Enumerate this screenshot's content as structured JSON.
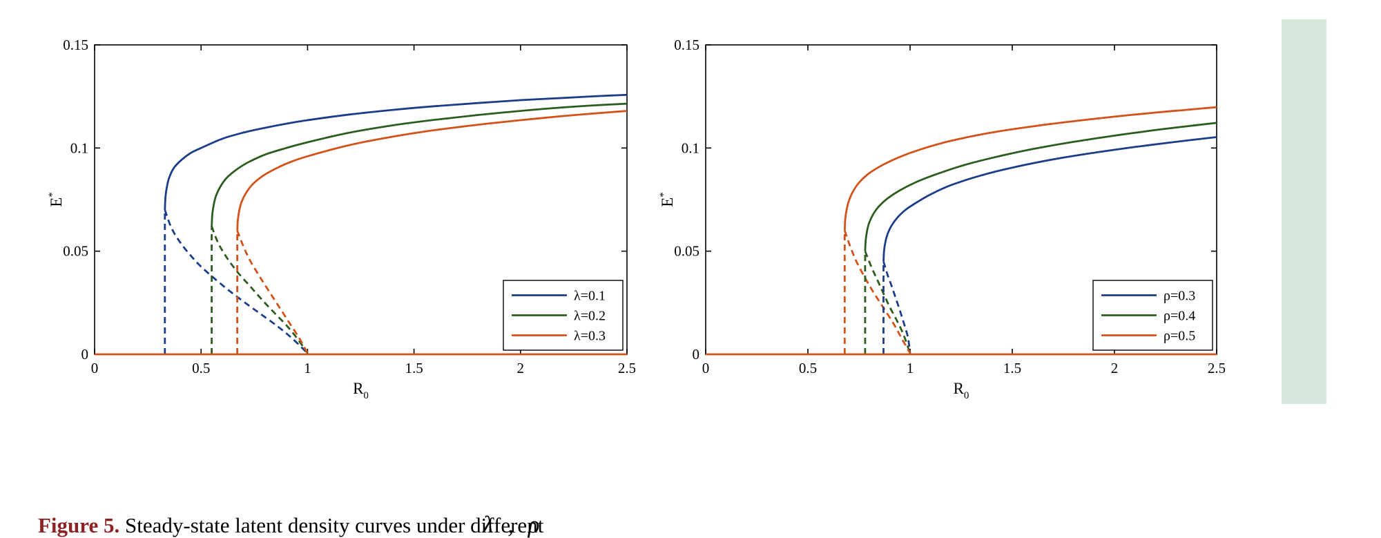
{
  "page": {
    "background": "#ffffff",
    "strip_color": "#d7e8dc"
  },
  "caption": {
    "label": "Figure 5.",
    "label_color": "#8e2222",
    "text": " Steady-state latent density curves under different",
    "math": "λ ,  ρ"
  },
  "chart_data": [
    {
      "type": "line",
      "title": "",
      "xlabel": {
        "main": "R",
        "sub": "0"
      },
      "ylabel": {
        "main": "E",
        "sup": "*"
      },
      "xlim": [
        0,
        2.5
      ],
      "ylim": [
        0,
        0.15
      ],
      "xticks": [
        0,
        0.5,
        1,
        1.5,
        2,
        2.5
      ],
      "xtick_labels": [
        "0",
        "0.5",
        "1",
        "1.5",
        "2",
        "2.5"
      ],
      "yticks": [
        0,
        0.05,
        0.1,
        0.15
      ],
      "ytick_labels": [
        "0",
        "0.05",
        "0.1",
        "0.15"
      ],
      "grid": false,
      "legend": {
        "position": "lower-right",
        "entries": [
          {
            "label": "λ=0.1",
            "color": "#1b3d8a"
          },
          {
            "label": "λ=0.2",
            "color": "#2d5d1e"
          },
          {
            "label": "λ=0.3",
            "color": "#d2521a"
          }
        ]
      },
      "series": [
        {
          "name": "lambda-0.1-stable",
          "color": "#1b3d8a",
          "style": "solid",
          "points": [
            [
              0.33,
              0.07
            ],
            [
              0.333,
              0.0765
            ],
            [
              0.34,
              0.0815
            ],
            [
              0.35,
              0.0855
            ],
            [
              0.37,
              0.09
            ],
            [
              0.4,
              0.0935
            ],
            [
              0.45,
              0.0975
            ],
            [
              0.5,
              0.1
            ],
            [
              0.6,
              0.1045
            ],
            [
              0.7,
              0.1075
            ],
            [
              0.8,
              0.1098
            ],
            [
              0.9,
              0.1118
            ],
            [
              1.0,
              0.1135
            ],
            [
              1.2,
              0.1163
            ],
            [
              1.4,
              0.1185
            ],
            [
              1.6,
              0.1203
            ],
            [
              1.8,
              0.1218
            ],
            [
              2.0,
              0.1232
            ],
            [
              2.2,
              0.1243
            ],
            [
              2.35,
              0.1251
            ],
            [
              2.5,
              0.1258
            ]
          ]
        },
        {
          "name": "lambda-0.2-stable",
          "color": "#2d5d1e",
          "style": "solid",
          "points": [
            [
              0.55,
              0.062
            ],
            [
              0.553,
              0.068
            ],
            [
              0.56,
              0.0728
            ],
            [
              0.57,
              0.0768
            ],
            [
              0.59,
              0.0812
            ],
            [
              0.62,
              0.0855
            ],
            [
              0.67,
              0.0898
            ],
            [
              0.72,
              0.093
            ],
            [
              0.8,
              0.0968
            ],
            [
              0.9,
              0.1
            ],
            [
              1.0,
              0.1028
            ],
            [
              1.2,
              0.1075
            ],
            [
              1.4,
              0.111
            ],
            [
              1.6,
              0.1137
            ],
            [
              1.8,
              0.116
            ],
            [
              2.0,
              0.118
            ],
            [
              2.2,
              0.1197
            ],
            [
              2.35,
              0.1207
            ],
            [
              2.5,
              0.1215
            ]
          ]
        },
        {
          "name": "lambda-0.3-stable",
          "color": "#d2521a",
          "style": "solid",
          "points": [
            [
              0.67,
              0.06
            ],
            [
              0.673,
              0.0655
            ],
            [
              0.68,
              0.07
            ],
            [
              0.69,
              0.0738
            ],
            [
              0.71,
              0.078
            ],
            [
              0.74,
              0.0822
            ],
            [
              0.79,
              0.0865
            ],
            [
              0.85,
              0.09
            ],
            [
              0.92,
              0.0932
            ],
            [
              1.0,
              0.096
            ],
            [
              1.2,
              0.1015
            ],
            [
              1.4,
              0.1055
            ],
            [
              1.6,
              0.1087
            ],
            [
              1.8,
              0.1113
            ],
            [
              2.0,
              0.1135
            ],
            [
              2.2,
              0.1155
            ],
            [
              2.35,
              0.1168
            ],
            [
              2.5,
              0.118
            ]
          ]
        },
        {
          "name": "lambda-0.1-unstable",
          "color": "#1b3d8a",
          "style": "dashed",
          "points": [
            [
              0.33,
              0.07
            ],
            [
              0.36,
              0.0615
            ],
            [
              0.4,
              0.0545
            ],
            [
              0.45,
              0.048
            ],
            [
              0.5,
              0.0425
            ],
            [
              0.56,
              0.037
            ],
            [
              0.63,
              0.031
            ],
            [
              0.7,
              0.0255
            ],
            [
              0.78,
              0.0195
            ],
            [
              0.86,
              0.0135
            ],
            [
              0.93,
              0.0075
            ],
            [
              1.0,
              0.0005
            ]
          ]
        },
        {
          "name": "lambda-0.2-unstable",
          "color": "#2d5d1e",
          "style": "dashed",
          "points": [
            [
              0.55,
              0.062
            ],
            [
              0.58,
              0.054
            ],
            [
              0.62,
              0.047
            ],
            [
              0.67,
              0.04
            ],
            [
              0.73,
              0.033
            ],
            [
              0.79,
              0.026
            ],
            [
              0.85,
              0.0195
            ],
            [
              0.91,
              0.013
            ],
            [
              0.96,
              0.0065
            ],
            [
              1.0,
              0.0005
            ]
          ]
        },
        {
          "name": "lambda-0.3-unstable",
          "color": "#d2521a",
          "style": "dashed",
          "points": [
            [
              0.67,
              0.06
            ],
            [
              0.7,
              0.052
            ],
            [
              0.73,
              0.0455
            ],
            [
              0.77,
              0.0385
            ],
            [
              0.81,
              0.032
            ],
            [
              0.86,
              0.024
            ],
            [
              0.91,
              0.016
            ],
            [
              0.96,
              0.008
            ],
            [
              1.0,
              0.0005
            ]
          ]
        },
        {
          "name": "lambda-0.1-fold-line",
          "color": "#1b3d8a",
          "style": "dashed",
          "points": [
            [
              0.33,
              0
            ],
            [
              0.33,
              0.07
            ]
          ]
        },
        {
          "name": "lambda-0.2-fold-line",
          "color": "#2d5d1e",
          "style": "dashed",
          "points": [
            [
              0.55,
              0
            ],
            [
              0.55,
              0.062
            ]
          ]
        },
        {
          "name": "lambda-0.3-fold-line",
          "color": "#d2521a",
          "style": "dashed",
          "points": [
            [
              0.67,
              0
            ],
            [
              0.67,
              0.06
            ]
          ]
        },
        {
          "name": "zero-equilibrium",
          "color": "#d2521a",
          "style": "solid",
          "points": [
            [
              0,
              0
            ],
            [
              2.5,
              0
            ]
          ]
        }
      ]
    },
    {
      "type": "line",
      "title": "",
      "xlabel": {
        "main": "R",
        "sub": "0"
      },
      "ylabel": {
        "main": "E",
        "sup": "*"
      },
      "xlim": [
        0,
        2.5
      ],
      "ylim": [
        0,
        0.15
      ],
      "xticks": [
        0,
        0.5,
        1,
        1.5,
        2,
        2.5
      ],
      "xtick_labels": [
        "0",
        "0.5",
        "1",
        "1.5",
        "2",
        "2.5"
      ],
      "yticks": [
        0,
        0.05,
        0.1,
        0.15
      ],
      "ytick_labels": [
        "0",
        "0.05",
        "0.1",
        "0.15"
      ],
      "grid": false,
      "legend": {
        "position": "lower-right",
        "entries": [
          {
            "label": "ρ=0.3",
            "color": "#1b3d8a"
          },
          {
            "label": "ρ=0.4",
            "color": "#2d5d1e"
          },
          {
            "label": "ρ=0.5",
            "color": "#d2521a"
          }
        ]
      },
      "series": [
        {
          "name": "rho-0.3-stable",
          "color": "#1b3d8a",
          "style": "solid",
          "points": [
            [
              0.87,
              0.045
            ],
            [
              0.873,
              0.0505
            ],
            [
              0.88,
              0.0548
            ],
            [
              0.89,
              0.0583
            ],
            [
              0.91,
              0.0625
            ],
            [
              0.94,
              0.0665
            ],
            [
              0.98,
              0.0702
            ],
            [
              1.03,
              0.0735
            ],
            [
              1.1,
              0.0775
            ],
            [
              1.2,
              0.082
            ],
            [
              1.35,
              0.0868
            ],
            [
              1.5,
              0.0905
            ],
            [
              1.7,
              0.0945
            ],
            [
              1.9,
              0.0977
            ],
            [
              2.1,
              0.1005
            ],
            [
              2.3,
              0.103
            ],
            [
              2.5,
              0.1053
            ]
          ]
        },
        {
          "name": "rho-0.4-stable",
          "color": "#2d5d1e",
          "style": "solid",
          "points": [
            [
              0.78,
              0.05
            ],
            [
              0.783,
              0.0555
            ],
            [
              0.79,
              0.06
            ],
            [
              0.8,
              0.0638
            ],
            [
              0.82,
              0.068
            ],
            [
              0.85,
              0.072
            ],
            [
              0.89,
              0.0756
            ],
            [
              0.95,
              0.0795
            ],
            [
              1.03,
              0.0835
            ],
            [
              1.12,
              0.087
            ],
            [
              1.25,
              0.0913
            ],
            [
              1.4,
              0.0952
            ],
            [
              1.6,
              0.0995
            ],
            [
              1.8,
              0.103
            ],
            [
              2.0,
              0.106
            ],
            [
              2.2,
              0.1087
            ],
            [
              2.35,
              0.1105
            ],
            [
              2.5,
              0.1122
            ]
          ]
        },
        {
          "name": "rho-0.5-stable",
          "color": "#d2521a",
          "style": "solid",
          "points": [
            [
              0.68,
              0.06
            ],
            [
              0.683,
              0.0657
            ],
            [
              0.69,
              0.0702
            ],
            [
              0.7,
              0.0742
            ],
            [
              0.72,
              0.0788
            ],
            [
              0.75,
              0.0832
            ],
            [
              0.8,
              0.0878
            ],
            [
              0.87,
              0.092
            ],
            [
              0.95,
              0.0957
            ],
            [
              1.05,
              0.0993
            ],
            [
              1.2,
              0.1035
            ],
            [
              1.4,
              0.1075
            ],
            [
              1.6,
              0.1105
            ],
            [
              1.8,
              0.113
            ],
            [
              2.0,
              0.1152
            ],
            [
              2.2,
              0.1172
            ],
            [
              2.35,
              0.1185
            ],
            [
              2.5,
              0.1198
            ]
          ]
        },
        {
          "name": "rho-0.3-unstable",
          "color": "#1b3d8a",
          "style": "dashed",
          "points": [
            [
              0.87,
              0.045
            ],
            [
              0.89,
              0.0385
            ],
            [
              0.91,
              0.033
            ],
            [
              0.93,
              0.0272
            ],
            [
              0.95,
              0.0213
            ],
            [
              0.97,
              0.015
            ],
            [
              0.99,
              0.008
            ],
            [
              1.0,
              0.0005
            ]
          ]
        },
        {
          "name": "rho-0.4-unstable",
          "color": "#2d5d1e",
          "style": "dashed",
          "points": [
            [
              0.78,
              0.05
            ],
            [
              0.81,
              0.0425
            ],
            [
              0.84,
              0.036
            ],
            [
              0.87,
              0.0295
            ],
            [
              0.9,
              0.023
            ],
            [
              0.94,
              0.0155
            ],
            [
              0.97,
              0.009
            ],
            [
              1.0,
              0.0005
            ]
          ]
        },
        {
          "name": "rho-0.5-unstable",
          "color": "#d2521a",
          "style": "dashed",
          "points": [
            [
              0.68,
              0.06
            ],
            [
              0.71,
              0.0515
            ],
            [
              0.74,
              0.0445
            ],
            [
              0.78,
              0.037
            ],
            [
              0.82,
              0.0302
            ],
            [
              0.87,
              0.0225
            ],
            [
              0.92,
              0.0147
            ],
            [
              0.96,
              0.0075
            ],
            [
              1.0,
              0.0005
            ]
          ]
        },
        {
          "name": "rho-0.3-fold-line",
          "color": "#1b3d8a",
          "style": "dashed",
          "points": [
            [
              0.87,
              0
            ],
            [
              0.87,
              0.045
            ]
          ]
        },
        {
          "name": "rho-0.4-fold-line",
          "color": "#2d5d1e",
          "style": "dashed",
          "points": [
            [
              0.78,
              0
            ],
            [
              0.78,
              0.05
            ]
          ]
        },
        {
          "name": "rho-0.5-fold-line",
          "color": "#d2521a",
          "style": "dashed",
          "points": [
            [
              0.68,
              0
            ],
            [
              0.68,
              0.06
            ]
          ]
        },
        {
          "name": "zero-equilibrium",
          "color": "#d2521a",
          "style": "solid",
          "points": [
            [
              0,
              0
            ],
            [
              2.5,
              0
            ]
          ]
        }
      ]
    }
  ]
}
